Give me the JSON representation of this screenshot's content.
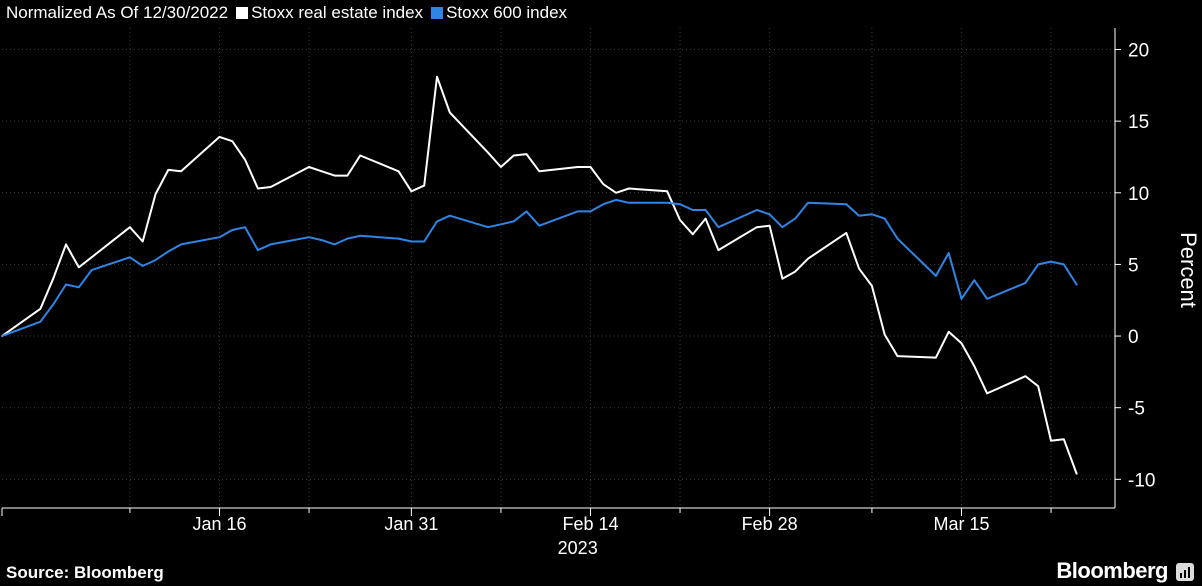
{
  "legend": {
    "note": "Normalized As Of 12/30/2022",
    "series_1": "Stoxx real estate index",
    "series_2": "Stoxx 600 index"
  },
  "footer": {
    "source": "Source: Bloomberg",
    "brand": "Bloomberg"
  },
  "icons": {
    "brand": "bloomberg-terminal-icon"
  },
  "chart_data": {
    "type": "line",
    "title": "",
    "subtitle": "Normalized As Of 12/30/2022",
    "ylabel": "Percent",
    "xlabel": "2023",
    "ylim": [
      -12,
      21.5
    ],
    "yticks": [
      20,
      15,
      10,
      5,
      0,
      -5,
      -10
    ],
    "x_start": "2022-12-30",
    "x_end": "2023-03-27",
    "xticks": [
      {
        "date": "2023-01-16",
        "label": "Jan 16"
      },
      {
        "date": "2023-01-31",
        "label": "Jan 31"
      },
      {
        "date": "2023-02-14",
        "label": "Feb 14"
      },
      {
        "date": "2023-02-28",
        "label": "Feb 28"
      },
      {
        "date": "2023-03-15",
        "label": "Mar 15"
      }
    ],
    "minor_ticks": [
      "2023-01-09",
      "2023-01-23",
      "2023-02-07",
      "2023-02-21",
      "2023-03-08",
      "2023-03-22"
    ],
    "year_label": "2023",
    "grid": true,
    "legend_position": "top-left",
    "dates": [
      "2022-12-30",
      "2023-01-02",
      "2023-01-03",
      "2023-01-04",
      "2023-01-05",
      "2023-01-06",
      "2023-01-09",
      "2023-01-10",
      "2023-01-11",
      "2023-01-12",
      "2023-01-13",
      "2023-01-16",
      "2023-01-17",
      "2023-01-18",
      "2023-01-19",
      "2023-01-20",
      "2023-01-23",
      "2023-01-24",
      "2023-01-25",
      "2023-01-26",
      "2023-01-27",
      "2023-01-30",
      "2023-01-31",
      "2023-02-01",
      "2023-02-02",
      "2023-02-03",
      "2023-02-06",
      "2023-02-07",
      "2023-02-08",
      "2023-02-09",
      "2023-02-10",
      "2023-02-13",
      "2023-02-14",
      "2023-02-15",
      "2023-02-16",
      "2023-02-17",
      "2023-02-20",
      "2023-02-21",
      "2023-02-22",
      "2023-02-23",
      "2023-02-24",
      "2023-02-27",
      "2023-02-28",
      "2023-03-01",
      "2023-03-02",
      "2023-03-03",
      "2023-03-06",
      "2023-03-07",
      "2023-03-08",
      "2023-03-09",
      "2023-03-10",
      "2023-03-13",
      "2023-03-14",
      "2023-03-15",
      "2023-03-16",
      "2023-03-17",
      "2023-03-20",
      "2023-03-21",
      "2023-03-22",
      "2023-03-23",
      "2023-03-24"
    ],
    "series": [
      {
        "name": "Stoxx real estate index",
        "color": "#ffffff",
        "values": [
          0.0,
          1.9,
          4.0,
          6.4,
          4.8,
          5.5,
          7.6,
          6.6,
          9.9,
          11.6,
          11.5,
          13.9,
          13.6,
          12.3,
          10.3,
          10.4,
          11.8,
          11.5,
          11.2,
          11.2,
          12.6,
          11.5,
          10.1,
          10.5,
          18.1,
          15.6,
          12.8,
          11.8,
          12.6,
          12.7,
          11.5,
          11.8,
          11.8,
          10.6,
          10.0,
          10.3,
          10.1,
          8.1,
          7.1,
          8.2,
          6.0,
          7.6,
          7.7,
          4.0,
          4.5,
          5.4,
          7.2,
          4.7,
          3.5,
          0.1,
          -1.4,
          -1.5,
          0.3,
          -0.5,
          -2.1,
          -4.0,
          -2.8,
          -3.5,
          -7.3,
          -7.2,
          -9.6
        ]
      },
      {
        "name": "Stoxx 600 index",
        "color": "#2f85e6",
        "values": [
          0.0,
          1.0,
          2.2,
          3.6,
          3.4,
          4.6,
          5.5,
          4.9,
          5.3,
          5.9,
          6.4,
          6.9,
          7.4,
          7.6,
          6.0,
          6.4,
          6.9,
          6.7,
          6.4,
          6.8,
          7.0,
          6.8,
          6.6,
          6.6,
          8.0,
          8.4,
          7.6,
          7.8,
          8.0,
          8.7,
          7.7,
          8.7,
          8.7,
          9.2,
          9.5,
          9.3,
          9.3,
          9.2,
          8.8,
          8.8,
          7.6,
          8.8,
          8.5,
          7.6,
          8.2,
          9.3,
          9.2,
          8.4,
          8.5,
          8.2,
          6.8,
          4.2,
          5.8,
          2.6,
          3.9,
          2.6,
          3.7,
          5.0,
          5.2,
          5.0,
          3.6
        ]
      }
    ]
  }
}
